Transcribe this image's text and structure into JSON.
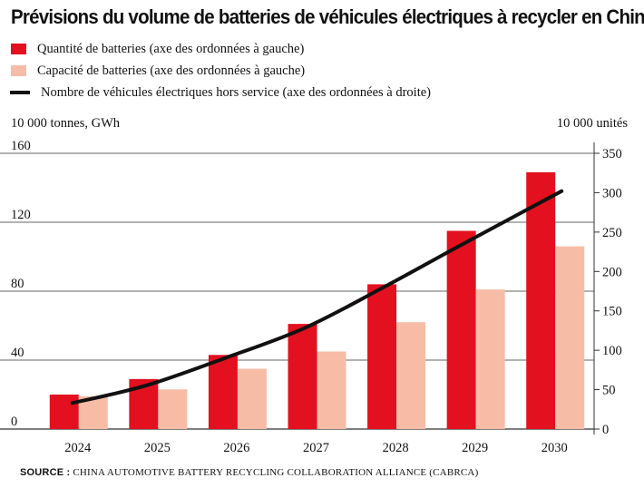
{
  "chart_data": {
    "type": "bar",
    "title": "Prévisions du volume de batteries de véhicules électriques à recycler en Chine",
    "categories": [
      "2024",
      "2025",
      "2026",
      "2027",
      "2028",
      "2029",
      "2030"
    ],
    "series": [
      {
        "name": "Quantité de batteries (axe des ordonnées à gauche)",
        "type": "bar",
        "axis": "left",
        "color": "#e3101f",
        "values": [
          20,
          29,
          43,
          61,
          84,
          115,
          149
        ]
      },
      {
        "name": "Capacité de batteries (axe des ordonnées à gauche)",
        "type": "bar",
        "axis": "left",
        "color": "#f6bca6",
        "values": [
          19,
          23,
          35,
          45,
          62,
          81,
          106
        ]
      },
      {
        "name": "Nombre de véhicules électriques hors service (axe des ordonnées à droite)",
        "type": "line",
        "axis": "right",
        "color": "#111111",
        "values": [
          33,
          55,
          90,
          128,
          180,
          235,
          302
        ]
      }
    ],
    "ylabel_left": "10 000 tonnes, GWh",
    "ylabel_right": "10 000 unités",
    "ylim_left": [
      0,
      160
    ],
    "yticks_left": [
      0,
      40,
      80,
      120,
      160
    ],
    "ylim_right": [
      0,
      350
    ],
    "yticks_right": [
      0,
      50,
      100,
      150,
      200,
      250,
      300,
      350
    ],
    "grid": "horizontal",
    "legend_position": "top-left"
  },
  "source": {
    "label": "SOURCE :",
    "text": "CHINA AUTOMOTIVE BATTERY RECYCLING COLLABORATION ALLIANCE (CABRCA)"
  }
}
